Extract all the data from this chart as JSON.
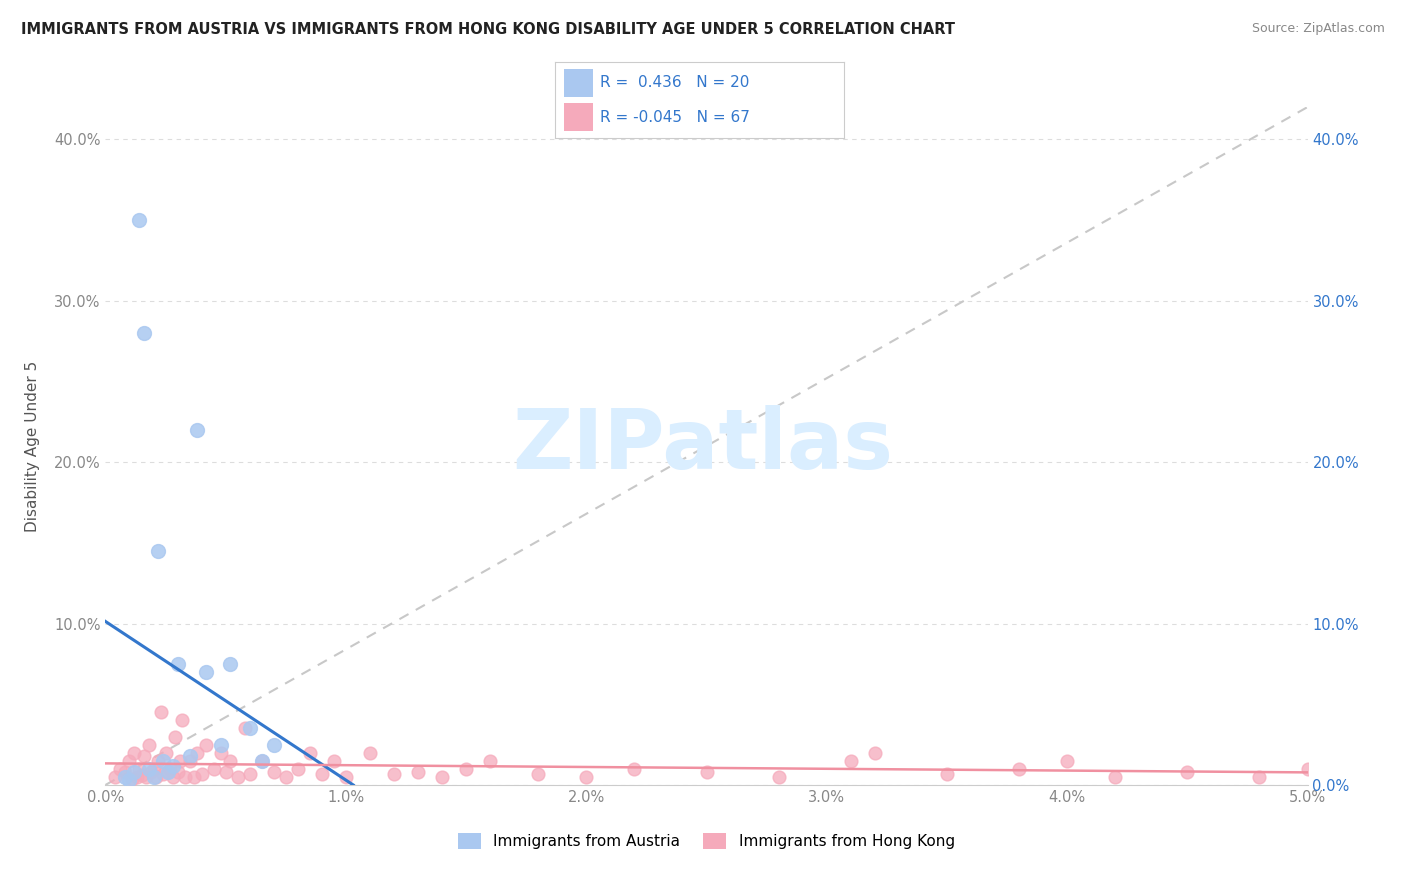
{
  "title": "IMMIGRANTS FROM AUSTRIA VS IMMIGRANTS FROM HONG KONG DISABILITY AGE UNDER 5 CORRELATION CHART",
  "source": "Source: ZipAtlas.com",
  "xlabel_bottom": "Immigrants from Austria",
  "xlabel_bottom2": "Immigrants from Hong Kong",
  "ylabel": "Disability Age Under 5",
  "xlim": [
    0.0,
    5.0
  ],
  "ylim": [
    0.0,
    42.0
  ],
  "xticks": [
    0.0,
    1.0,
    2.0,
    3.0,
    4.0,
    5.0
  ],
  "xticklabels": [
    "0.0%",
    "1.0%",
    "2.0%",
    "3.0%",
    "4.0%",
    "5.0%"
  ],
  "yticks": [
    0.0,
    10.0,
    20.0,
    30.0,
    40.0
  ],
  "yticklabels_left": [
    "",
    "10.0%",
    "20.0%",
    "30.0%",
    "40.0%"
  ],
  "yticklabels_right": [
    "0.0%",
    "10.0%",
    "20.0%",
    "30.0%",
    "40.0%"
  ],
  "legend_r1": "0.436",
  "legend_n1": "20",
  "legend_r2": "-0.045",
  "legend_n2": "67",
  "austria_color": "#aac8f0",
  "hongkong_color": "#f5aabb",
  "austria_line_color": "#3377cc",
  "hongkong_line_color": "#f090a0",
  "ref_line_color": "#c8c8c8",
  "austria_scatter_x": [
    0.08,
    0.1,
    0.12,
    0.14,
    0.16,
    0.18,
    0.2,
    0.22,
    0.24,
    0.26,
    0.28,
    0.3,
    0.35,
    0.38,
    0.42,
    0.48,
    0.52,
    0.6,
    0.65,
    0.7
  ],
  "austria_scatter_y": [
    0.5,
    0.3,
    0.8,
    35.0,
    28.0,
    1.0,
    0.5,
    14.5,
    1.5,
    0.8,
    1.2,
    7.5,
    1.8,
    22.0,
    7.0,
    2.5,
    7.5,
    3.5,
    1.5,
    2.5
  ],
  "hongkong_scatter_x": [
    0.04,
    0.06,
    0.08,
    0.1,
    0.11,
    0.12,
    0.13,
    0.14,
    0.15,
    0.16,
    0.17,
    0.18,
    0.19,
    0.2,
    0.21,
    0.22,
    0.23,
    0.24,
    0.25,
    0.26,
    0.27,
    0.28,
    0.29,
    0.3,
    0.31,
    0.32,
    0.33,
    0.35,
    0.37,
    0.38,
    0.4,
    0.42,
    0.45,
    0.48,
    0.5,
    0.52,
    0.55,
    0.58,
    0.6,
    0.65,
    0.7,
    0.75,
    0.8,
    0.85,
    0.9,
    0.95,
    1.0,
    1.1,
    1.2,
    1.3,
    1.4,
    1.5,
    1.6,
    1.8,
    2.0,
    2.2,
    2.5,
    2.8,
    3.1,
    3.5,
    3.8,
    4.2,
    4.5,
    4.8,
    5.0,
    3.2,
    4.0
  ],
  "hongkong_scatter_y": [
    0.5,
    1.0,
    0.8,
    1.5,
    0.4,
    2.0,
    0.5,
    1.0,
    0.6,
    1.8,
    0.5,
    2.5,
    0.8,
    1.0,
    0.5,
    1.5,
    4.5,
    0.7,
    2.0,
    0.8,
    1.0,
    0.5,
    3.0,
    0.8,
    1.5,
    4.0,
    0.5,
    1.5,
    0.5,
    2.0,
    0.7,
    2.5,
    1.0,
    2.0,
    0.8,
    1.5,
    0.5,
    3.5,
    0.7,
    1.5,
    0.8,
    0.5,
    1.0,
    2.0,
    0.7,
    1.5,
    0.5,
    2.0,
    0.7,
    0.8,
    0.5,
    1.0,
    1.5,
    0.7,
    0.5,
    1.0,
    0.8,
    0.5,
    1.5,
    0.7,
    1.0,
    0.5,
    0.8,
    0.5,
    1.0,
    2.0,
    1.5
  ],
  "background_color": "#ffffff",
  "grid_color": "#dddddd",
  "title_color": "#222222",
  "axis_label_color": "#555555",
  "tick_color_left": "#888888",
  "tick_color_right": "#3377cc",
  "watermark_text": "ZIPatlas",
  "watermark_color": "#daeeff"
}
